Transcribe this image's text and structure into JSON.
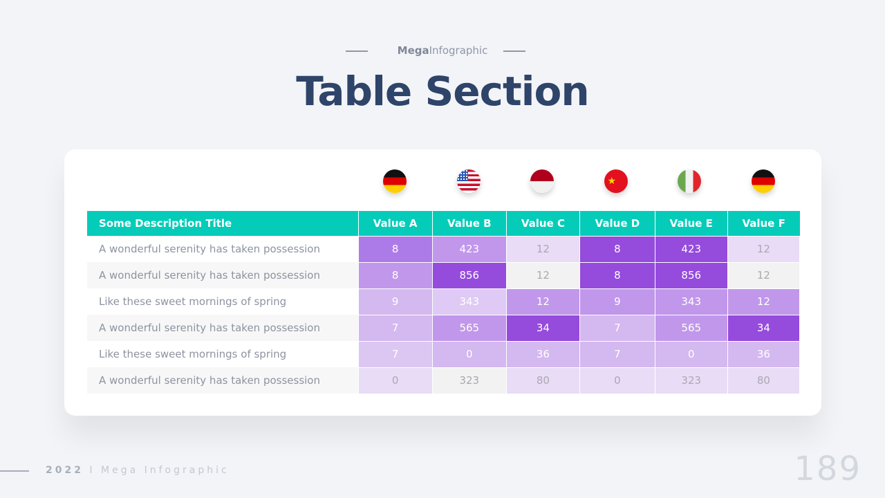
{
  "header": {
    "eyebrow_bold": "Mega",
    "eyebrow_rest": "Infographic",
    "title": "Table Section"
  },
  "flags": [
    "germany-flag",
    "usa-flag",
    "indonesia-flag",
    "china-flag",
    "italy-flag",
    "germany-flag"
  ],
  "table": {
    "columns": [
      "Some Description Title",
      "Value A",
      "Value B",
      "Value C",
      "Value D",
      "Value E",
      "Value F"
    ],
    "header_color": "#05ccb9",
    "rows": [
      {
        "label": "A wonderful serenity has taken possession",
        "values": [
          "8",
          "423",
          "12",
          "8",
          "423",
          "12"
        ],
        "colors": [
          "#ad7be7",
          "#c197eb",
          "#e9dcf7",
          "#954bdc",
          "#954bdc",
          "#e9dcf7"
        ]
      },
      {
        "label": "A wonderful serenity has taken possession",
        "values": [
          "8",
          "856",
          "12",
          "8",
          "856",
          "12"
        ],
        "colors": [
          "#c197eb",
          "#954bdc",
          "#f2f2f2",
          "#954bdc",
          "#954bdc",
          "#f2f2f2"
        ]
      },
      {
        "label": "Like these sweet mornings of spring",
        "values": [
          "9",
          "343",
          "12",
          "9",
          "343",
          "12"
        ],
        "colors": [
          "#d4b8f0",
          "#dfcaf5",
          "#c197eb",
          "#c197eb",
          "#c197eb",
          "#c197eb"
        ]
      },
      {
        "label": "A wonderful serenity has taken possession",
        "values": [
          "7",
          "565",
          "34",
          "7",
          "565",
          "34"
        ],
        "colors": [
          "#d4b8f0",
          "#c197eb",
          "#954bdc",
          "#d4b8f0",
          "#c197eb",
          "#954bdc"
        ]
      },
      {
        "label": "Like these sweet mornings of spring",
        "values": [
          "7",
          "0",
          "36",
          "7",
          "0",
          "36"
        ],
        "colors": [
          "#dcc7f3",
          "#d4b8f0",
          "#d4b8f0",
          "#d4b8f0",
          "#d4b8f0",
          "#d4b8f0"
        ]
      },
      {
        "label": "A wonderful serenity has taken possession",
        "values": [
          "0",
          "323",
          "80",
          "0",
          "323",
          "80"
        ],
        "colors": [
          "#e9dcf7",
          "#f2f2f2",
          "#e9dcf7",
          "#e9dcf7",
          "#e9dcf7",
          "#e9dcf7"
        ]
      }
    ]
  },
  "footer": {
    "year": "2022",
    "text": "I Mega Infographic",
    "page": "189"
  }
}
